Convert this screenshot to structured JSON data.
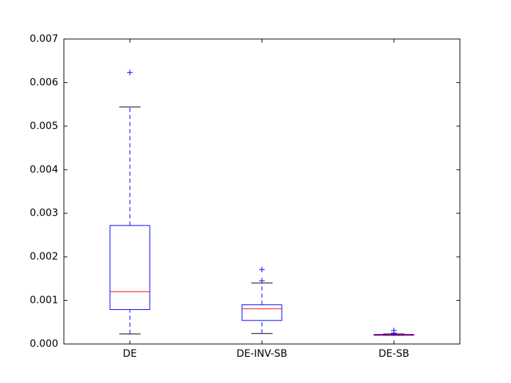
{
  "chart_data": {
    "type": "box",
    "categories": [
      "DE",
      "DE-INV-SB",
      "DE-SB"
    ],
    "boxes": [
      {
        "min": 0.00023,
        "q1": 0.00079,
        "median": 0.0012,
        "q3": 0.00272,
        "max": 0.00544,
        "outliers": [
          0.00623
        ]
      },
      {
        "min": 0.00024,
        "q1": 0.00054,
        "median": 0.00081,
        "q3": 0.0009,
        "max": 0.0014,
        "outliers": [
          0.00145,
          0.00171
        ]
      },
      {
        "min": 0.0002,
        "q1": 0.0002,
        "median": 0.00021,
        "q3": 0.00022,
        "max": 0.00023,
        "outliers": [
          0.00025,
          0.00031
        ]
      }
    ],
    "box_color": "#0000ff",
    "median_color": "#ff0000",
    "cap_color": "#000000",
    "ylim": [
      0,
      0.007
    ],
    "yticks": [
      {
        "value": 0,
        "label": "0.000"
      },
      0.001,
      0.002,
      0.003,
      0.004,
      0.005,
      0.006,
      0.007
    ],
    "grid": false
  }
}
